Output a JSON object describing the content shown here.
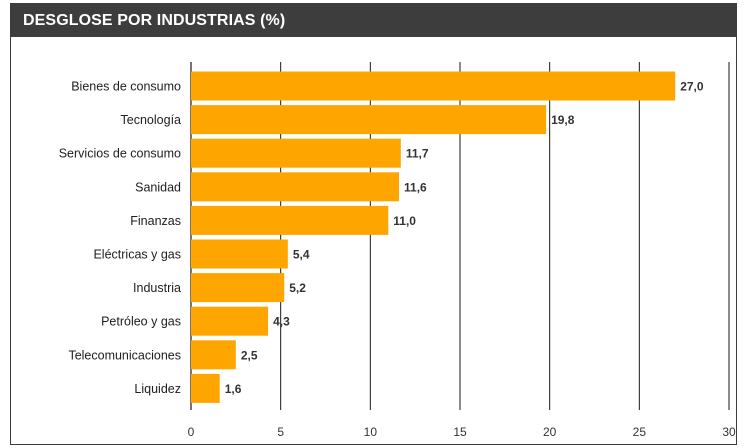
{
  "header": {
    "title": "DESGLOSE POR INDUSTRIAS (%)"
  },
  "colors": {
    "bar": "#FFA500",
    "header_bg": "#3D3D3D",
    "grid": "#1A1A1A"
  },
  "chart_data": {
    "type": "bar",
    "orientation": "horizontal",
    "title": "DESGLOSE POR INDUSTRIAS (%)",
    "categories": [
      "Bienes de consumo",
      "Tecnología",
      "Servicios de consumo",
      "Sanidad",
      "Finanzas",
      "Eléctricas y gas",
      "Industria",
      "Petróleo y gas",
      "Telecomunicaciones",
      "Liquidez"
    ],
    "values": [
      27.0,
      19.8,
      11.7,
      11.6,
      11.0,
      5.4,
      5.2,
      4.3,
      2.5,
      1.6
    ],
    "value_labels": [
      "27,0",
      "19,8",
      "11,7",
      "11,6",
      "11,0",
      "5,4",
      "5,2",
      "4,3",
      "2,5",
      "1,6"
    ],
    "xlim": [
      0,
      30
    ],
    "xticks": [
      0,
      5,
      10,
      15,
      20,
      25,
      30
    ],
    "grid": true,
    "legend": "none",
    "xlabel": "",
    "ylabel": ""
  }
}
